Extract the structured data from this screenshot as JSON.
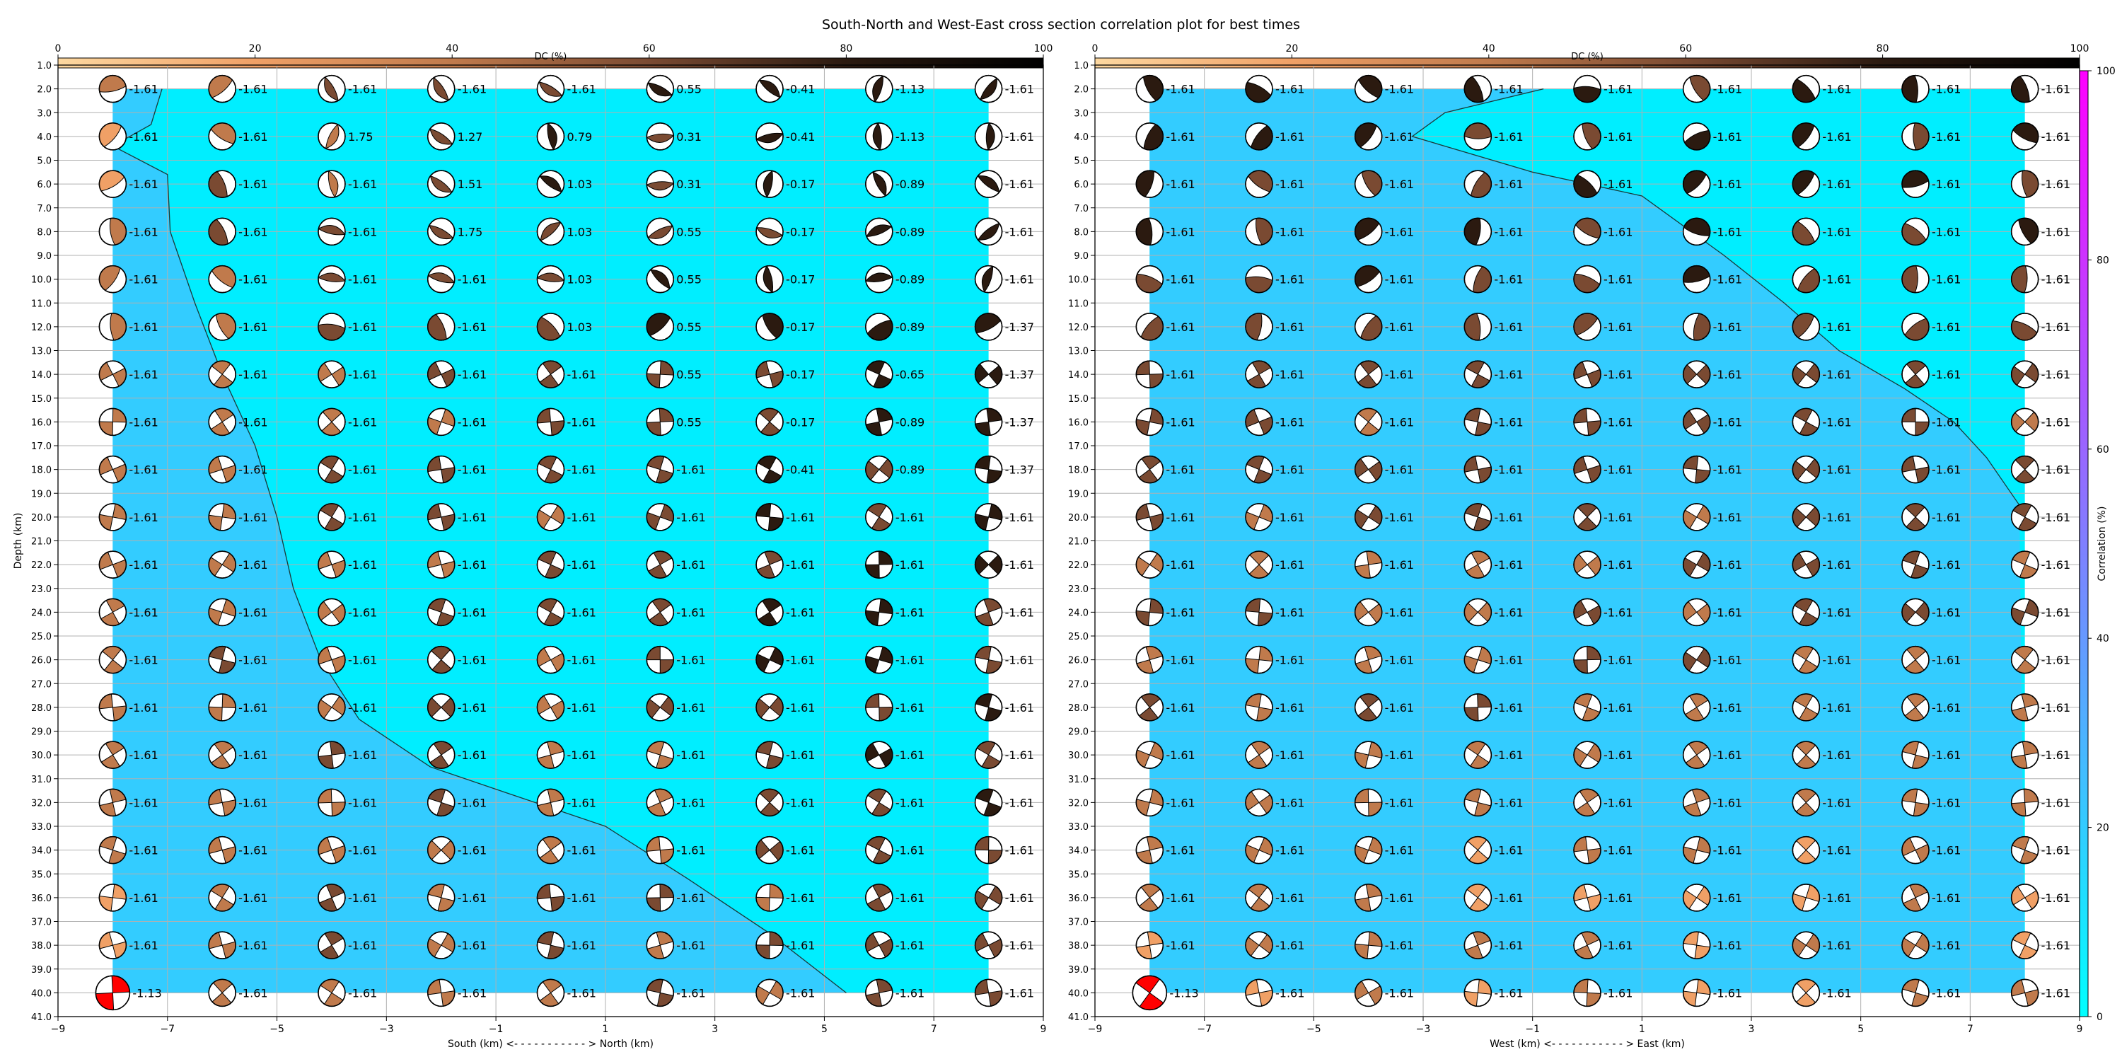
{
  "figure": {
    "title": "South-North and West-East cross section correlation plot for best times"
  },
  "colorbars": {
    "dc": {
      "label": "DC (%)",
      "ticks": [
        "0",
        "20",
        "40",
        "60",
        "80",
        "100"
      ],
      "colors": [
        "#fdd8a0",
        "#f0a066",
        "#c07a4c",
        "#7a4a32",
        "#2b1a10",
        "#000000"
      ]
    },
    "correlation": {
      "label": "Correlation (%)",
      "ticks": [
        "0",
        "20",
        "40",
        "60",
        "80",
        "100"
      ],
      "colors": [
        "#00ffff",
        "#ff00ff"
      ]
    }
  },
  "chart_data": [
    {
      "type": "heatmap",
      "panel": "south-north",
      "xlabel": "South (km) <- - - - - - - - - - - > North (km)",
      "ylabel": "Depth (km)",
      "xlim": [
        -9,
        9
      ],
      "ylim": [
        41,
        1
      ],
      "xticks": [
        "-9",
        "-7",
        "-5",
        "-3",
        "-1",
        "1",
        "3",
        "5",
        "7",
        "9"
      ],
      "yticks": [
        "1.0",
        "2.0",
        "3.0",
        "4.0",
        "5.0",
        "6.0",
        "7.0",
        "8.0",
        "9.0",
        "10.0",
        "11.0",
        "12.0",
        "13.0",
        "14.0",
        "15.0",
        "16.0",
        "17.0",
        "18.0",
        "19.0",
        "20.0",
        "21.0",
        "22.0",
        "23.0",
        "24.0",
        "25.0",
        "26.0",
        "27.0",
        "28.0",
        "29.0",
        "30.0",
        "31.0",
        "32.0",
        "33.0",
        "34.0",
        "35.0",
        "36.0",
        "37.0",
        "38.0",
        "39.0",
        "40.0",
        "41.0"
      ],
      "x_positions": [
        -8,
        -6,
        -4,
        -2,
        0,
        2,
        4,
        6,
        8
      ],
      "depths": [
        2,
        4,
        6,
        8,
        10,
        12,
        14,
        16,
        18,
        20,
        22,
        24,
        26,
        28,
        30,
        32,
        34,
        36,
        38,
        40
      ],
      "background_colors": [
        "#33ccff",
        "#00eeff"
      ],
      "contour_line": [
        [
          -7.1,
          2
        ],
        [
          -7.3,
          3.5
        ],
        [
          -8,
          4.4
        ],
        [
          -7,
          5.6
        ],
        [
          -6.95,
          8
        ],
        [
          -6.5,
          11
        ],
        [
          -6,
          14
        ],
        [
          -5.4,
          17
        ],
        [
          -5,
          20
        ],
        [
          -4.7,
          23
        ],
        [
          -4.2,
          26
        ],
        [
          -3.5,
          28.5
        ],
        [
          -2.2,
          30.5
        ],
        [
          -0.8,
          31.6
        ],
        [
          1,
          33
        ],
        [
          2.5,
          35.2
        ],
        [
          4,
          37.5
        ],
        [
          5.4,
          40
        ]
      ],
      "labels": [
        [
          "-1.61",
          "-1.61",
          "-1.61",
          "-1.61",
          "-1.61",
          "0.55",
          "-0.41",
          "-1.13",
          "-1.61"
        ],
        [
          "-1.61",
          "-1.61",
          "1.75",
          "1.27",
          "0.79",
          "0.31",
          "-0.41",
          "-1.13",
          "-1.61"
        ],
        [
          "-1.61",
          "-1.61",
          "-1.61",
          "1.51",
          "1.03",
          "0.31",
          "-0.17",
          "-0.89",
          "-1.61"
        ],
        [
          "-1.61",
          "-1.61",
          "-1.61",
          "1.75",
          "1.03",
          "0.55",
          "-0.17",
          "-0.89",
          "-1.61"
        ],
        [
          "-1.61",
          "-1.61",
          "-1.61",
          "-1.61",
          "1.03",
          "0.55",
          "-0.17",
          "-0.89",
          "-1.61"
        ],
        [
          "-1.61",
          "-1.61",
          "-1.61",
          "-1.61",
          "1.03",
          "0.55",
          "-0.17",
          "-0.89",
          "-1.37"
        ],
        [
          "-1.61",
          "-1.61",
          "-1.61",
          "-1.61",
          "-1.61",
          "0.55",
          "-0.17",
          "-0.65",
          "-1.37"
        ],
        [
          "-1.61",
          "-1.61",
          "-1.61",
          "-1.61",
          "-1.61",
          "0.55",
          "-0.17",
          "-0.89",
          "-1.37"
        ],
        [
          "-1.61",
          "-1.61",
          "-1.61",
          "-1.61",
          "-1.61",
          "-1.61",
          "-0.41",
          "-0.89",
          "-1.37"
        ],
        [
          "-1.61",
          "-1.61",
          "-1.61",
          "-1.61",
          "-1.61",
          "-1.61",
          "-1.61",
          "-1.61",
          "-1.61"
        ],
        [
          "-1.61",
          "-1.61",
          "-1.61",
          "-1.61",
          "-1.61",
          "-1.61",
          "-1.61",
          "-1.61",
          "-1.61"
        ],
        [
          "-1.61",
          "-1.61",
          "-1.61",
          "-1.61",
          "-1.61",
          "-1.61",
          "-1.61",
          "-1.61",
          "-1.61"
        ],
        [
          "-1.61",
          "-1.61",
          "-1.61",
          "-1.61",
          "-1.61",
          "-1.61",
          "-1.61",
          "-1.61",
          "-1.61"
        ],
        [
          "-1.61",
          "-1.61",
          "-1.61",
          "-1.61",
          "-1.61",
          "-1.61",
          "-1.61",
          "-1.61",
          "-1.61"
        ],
        [
          "-1.61",
          "-1.61",
          "-1.61",
          "-1.61",
          "-1.61",
          "-1.61",
          "-1.61",
          "-1.61",
          "-1.61"
        ],
        [
          "-1.61",
          "-1.61",
          "-1.61",
          "-1.61",
          "-1.61",
          "-1.61",
          "-1.61",
          "-1.61",
          "-1.61"
        ],
        [
          "-1.61",
          "-1.61",
          "-1.61",
          "-1.61",
          "-1.61",
          "-1.61",
          "-1.61",
          "-1.61",
          "-1.61"
        ],
        [
          "-1.61",
          "-1.61",
          "-1.61",
          "-1.61",
          "-1.61",
          "-1.61",
          "-1.61",
          "-1.61",
          "-1.61"
        ],
        [
          "-1.61",
          "-1.61",
          "-1.61",
          "-1.61",
          "-1.61",
          "-1.61",
          "-1.61",
          "-1.61",
          "-1.61"
        ],
        [
          "-1.13",
          "-1.61",
          "-1.61",
          "-1.61",
          "-1.61",
          "-1.61",
          "-1.61",
          "-1.61",
          "-1.61"
        ]
      ],
      "best_solution": {
        "x": -8,
        "depth": 40,
        "color": "#ff0000"
      }
    },
    {
      "type": "heatmap",
      "panel": "west-east",
      "xlabel": "West (km) <- - - - - - - - - - - > East (km)",
      "ylabel": "",
      "xlim": [
        -9,
        9
      ],
      "ylim": [
        41,
        1
      ],
      "xticks": [
        "-9",
        "-7",
        "-5",
        "-3",
        "-1",
        "1",
        "3",
        "5",
        "7",
        "9"
      ],
      "yticks": [
        "1.0",
        "2.0",
        "3.0",
        "4.0",
        "5.0",
        "6.0",
        "7.0",
        "8.0",
        "9.0",
        "10.0",
        "11.0",
        "12.0",
        "13.0",
        "14.0",
        "15.0",
        "16.0",
        "17.0",
        "18.0",
        "19.0",
        "20.0",
        "21.0",
        "22.0",
        "23.0",
        "24.0",
        "25.0",
        "26.0",
        "27.0",
        "28.0",
        "29.0",
        "30.0",
        "31.0",
        "32.0",
        "33.0",
        "34.0",
        "35.0",
        "36.0",
        "37.0",
        "38.0",
        "39.0",
        "40.0",
        "41.0"
      ],
      "x_positions": [
        -8,
        -6,
        -4,
        -2,
        0,
        2,
        4,
        6,
        8
      ],
      "depths": [
        2,
        4,
        6,
        8,
        10,
        12,
        14,
        16,
        18,
        20,
        22,
        24,
        26,
        28,
        30,
        32,
        34,
        36,
        38,
        40
      ],
      "background_colors": [
        "#33ccff",
        "#00eeff"
      ],
      "contour_line": [
        [
          -0.8,
          2
        ],
        [
          -2.6,
          3
        ],
        [
          -3.2,
          4
        ],
        [
          -1,
          5.5
        ],
        [
          1,
          6.5
        ],
        [
          2.5,
          9
        ],
        [
          3.6,
          11
        ],
        [
          4.6,
          13
        ],
        [
          5.8,
          14.6
        ],
        [
          6.7,
          16
        ],
        [
          7.3,
          17.5
        ],
        [
          7.9,
          19.5
        ]
      ],
      "labels": [
        [
          "-1.61",
          "-1.61",
          "-1.61",
          "-1.61",
          "-1.61",
          "-1.61",
          "-1.61",
          "-1.61",
          "-1.61"
        ],
        [
          "-1.61",
          "-1.61",
          "-1.61",
          "-1.61",
          "-1.61",
          "-1.61",
          "-1.61",
          "-1.61",
          "-1.61"
        ],
        [
          "-1.61",
          "-1.61",
          "-1.61",
          "-1.61",
          "-1.61",
          "-1.61",
          "-1.61",
          "-1.61",
          "-1.61"
        ],
        [
          "-1.61",
          "-1.61",
          "-1.61",
          "-1.61",
          "-1.61",
          "-1.61",
          "-1.61",
          "-1.61",
          "-1.61"
        ],
        [
          "-1.61",
          "-1.61",
          "-1.61",
          "-1.61",
          "-1.61",
          "-1.61",
          "-1.61",
          "-1.61",
          "-1.61"
        ],
        [
          "-1.61",
          "-1.61",
          "-1.61",
          "-1.61",
          "-1.61",
          "-1.61",
          "-1.61",
          "-1.61",
          "-1.61"
        ],
        [
          "-1.61",
          "-1.61",
          "-1.61",
          "-1.61",
          "-1.61",
          "-1.61",
          "-1.61",
          "-1.61",
          "-1.61"
        ],
        [
          "-1.61",
          "-1.61",
          "-1.61",
          "-1.61",
          "-1.61",
          "-1.61",
          "-1.61",
          "-1.61",
          "-1.61"
        ],
        [
          "-1.61",
          "-1.61",
          "-1.61",
          "-1.61",
          "-1.61",
          "-1.61",
          "-1.61",
          "-1.61",
          "-1.61"
        ],
        [
          "-1.61",
          "-1.61",
          "-1.61",
          "-1.61",
          "-1.61",
          "-1.61",
          "-1.61",
          "-1.61",
          "-1.61"
        ],
        [
          "-1.61",
          "-1.61",
          "-1.61",
          "-1.61",
          "-1.61",
          "-1.61",
          "-1.61",
          "-1.61",
          "-1.61"
        ],
        [
          "-1.61",
          "-1.61",
          "-1.61",
          "-1.61",
          "-1.61",
          "-1.61",
          "-1.61",
          "-1.61",
          "-1.61"
        ],
        [
          "-1.61",
          "-1.61",
          "-1.61",
          "-1.61",
          "-1.61",
          "-1.61",
          "-1.61",
          "-1.61",
          "-1.61"
        ],
        [
          "-1.61",
          "-1.61",
          "-1.61",
          "-1.61",
          "-1.61",
          "-1.61",
          "-1.61",
          "-1.61",
          "-1.61"
        ],
        [
          "-1.61",
          "-1.61",
          "-1.61",
          "-1.61",
          "-1.61",
          "-1.61",
          "-1.61",
          "-1.61",
          "-1.61"
        ],
        [
          "-1.61",
          "-1.61",
          "-1.61",
          "-1.61",
          "-1.61",
          "-1.61",
          "-1.61",
          "-1.61",
          "-1.61"
        ],
        [
          "-1.61",
          "-1.61",
          "-1.61",
          "-1.61",
          "-1.61",
          "-1.61",
          "-1.61",
          "-1.61",
          "-1.61"
        ],
        [
          "-1.61",
          "-1.61",
          "-1.61",
          "-1.61",
          "-1.61",
          "-1.61",
          "-1.61",
          "-1.61",
          "-1.61"
        ],
        [
          "-1.61",
          "-1.61",
          "-1.61",
          "-1.61",
          "-1.61",
          "-1.61",
          "-1.61",
          "-1.61",
          "-1.61"
        ],
        [
          "-1.13",
          "-1.61",
          "-1.61",
          "-1.61",
          "-1.61",
          "-1.61",
          "-1.61",
          "-1.61",
          "-1.61"
        ]
      ],
      "best_solution": {
        "x": -8,
        "depth": 40,
        "color": "#ff0000"
      }
    }
  ]
}
